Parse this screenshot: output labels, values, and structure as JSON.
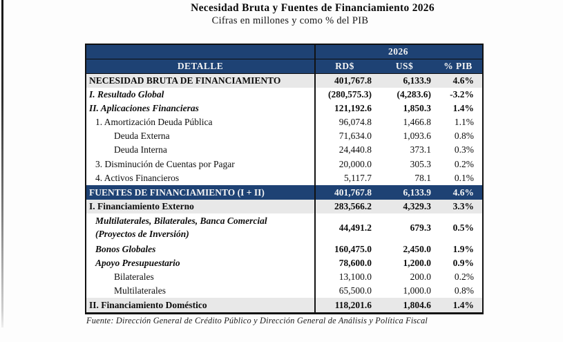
{
  "title": "Necesidad Bruta y Fuentes de Financiamiento  2026",
  "subtitle": "Cifras en millones  y como % del PIB",
  "source": "Fuente: Dirección General de Crédito Público y Dirección General de Análisis y Política Fiscal",
  "colors": {
    "header_blue": "#1e4274",
    "highlight_gray": "#e8e8e8",
    "border_black": "#111111"
  },
  "table": {
    "year_header": "2026",
    "columns": {
      "detail": "DETALLE",
      "rds": "RD$",
      "uss": "US$",
      "pib": "% PIB"
    },
    "rows": [
      {
        "label": "NECESIDAD BRUTA DE FINANCIAMIENTO",
        "rds": "401,767.8",
        "uss": "6,133.9",
        "pib": "4.6%"
      },
      {
        "label": "I. Resultado Global",
        "rds": "(280,575.3)",
        "uss": "(4,283.6)",
        "pib": "-3.2%"
      },
      {
        "label": "II. Aplicaciones Financieras",
        "rds": "121,192.6",
        "uss": "1,850.3",
        "pib": "1.4%"
      },
      {
        "label": "1. Amortización Deuda Pública",
        "rds": "96,074.8",
        "uss": "1,466.8",
        "pib": "1.1%"
      },
      {
        "label": "Deuda Externa",
        "rds": "71,634.0",
        "uss": "1,093.6",
        "pib": "0.8%"
      },
      {
        "label": "Deuda Interna",
        "rds": "24,440.8",
        "uss": "373.1",
        "pib": "0.3%"
      },
      {
        "label": "3. Disminución de Cuentas por Pagar",
        "rds": "20,000.0",
        "uss": "305.3",
        "pib": "0.2%"
      },
      {
        "label": "4. Activos Financieros",
        "rds": "5,117.7",
        "uss": "78.1",
        "pib": "0.1%"
      },
      {
        "label": "FUENTES DE FINANCIAMIENTO (I + II)",
        "rds": "401,767.8",
        "uss": "6,133.9",
        "pib": "4.6%"
      },
      {
        "label": "I. Financiamiento Externo",
        "rds": "283,566.2",
        "uss": "4,329.3",
        "pib": "3.3%"
      },
      {
        "label": "Multilaterales, Bilaterales, Banca Comercial",
        "label2": "(Proyectos de Inversión)",
        "rds": "44,491.2",
        "uss": "679.3",
        "pib": "0.5%"
      },
      {
        "label": "Bonos Globales",
        "rds": "160,475.0",
        "uss": "2,450.0",
        "pib": "1.9%"
      },
      {
        "label": "Apoyo Presupuestario",
        "rds": "78,600.0",
        "uss": "1,200.0",
        "pib": "0.9%"
      },
      {
        "label": "Bilaterales",
        "rds": "13,100.0",
        "uss": "200.0",
        "pib": "0.2%"
      },
      {
        "label": "Multilaterales",
        "rds": "65,500.0",
        "uss": "1,000.0",
        "pib": "0.8%"
      },
      {
        "label": "II. Financiamiento Doméstico",
        "rds": "118,201.6",
        "uss": "1,804.6",
        "pib": "1.4%"
      }
    ]
  }
}
